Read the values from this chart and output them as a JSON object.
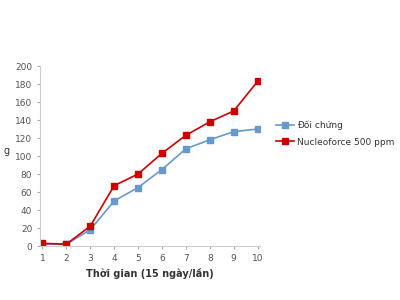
{
  "x": [
    1,
    2,
    3,
    4,
    5,
    6,
    7,
    8,
    9,
    10
  ],
  "doi_chung": [
    2,
    2,
    18,
    50,
    65,
    85,
    108,
    118,
    127,
    130
  ],
  "nucleoforce": [
    3,
    2,
    22,
    67,
    80,
    103,
    123,
    138,
    150,
    183
  ],
  "doi_chung_color": "#6699cc",
  "nucleoforce_color": "#cc0000",
  "xlabel": "Thời gian (15 ngày/lần)",
  "ylabel": "g",
  "ylim": [
    0,
    200
  ],
  "xlim": [
    1,
    10
  ],
  "yticks": [
    0,
    20,
    40,
    60,
    80,
    100,
    120,
    140,
    160,
    180,
    200
  ],
  "xticks": [
    1,
    2,
    3,
    4,
    5,
    6,
    7,
    8,
    9,
    10
  ],
  "legend_doi_chung": "Đối chứng",
  "legend_nucleoforce": "Nucleoforce 500 ppm",
  "background_color": "#ffffff",
  "marker_size": 4,
  "linewidth": 1.2,
  "fig_width": 4.0,
  "fig_height": 3.0,
  "fig_dpi": 100
}
